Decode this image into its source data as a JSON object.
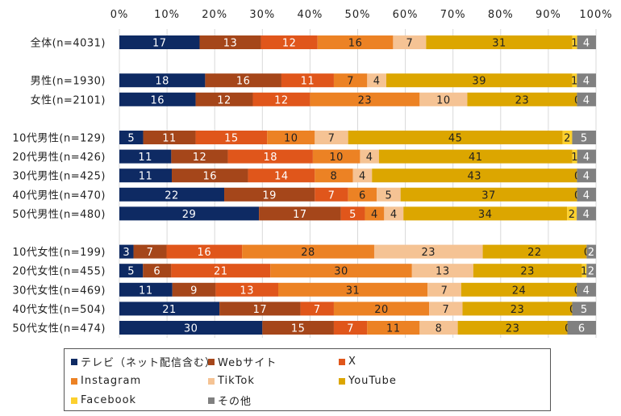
{
  "chart_data": {
    "type": "bar",
    "orientation": "horizontal",
    "stacked": "percent",
    "title": "",
    "xlabel": "",
    "ylabel": "",
    "xlim": [
      0,
      100
    ],
    "x_ticks": [
      "0%",
      "10%",
      "20%",
      "30%",
      "40%",
      "50%",
      "60%",
      "70%",
      "80%",
      "90%",
      "100%"
    ],
    "grid": true,
    "legend_position": "bottom",
    "categories": [
      "全体(n=4031)",
      "",
      "男性(n=1930)",
      "女性(n=2101)",
      "",
      "10代男性(n=129)",
      "20代男性(n=426)",
      "30代男性(n=425)",
      "40代男性(n=470)",
      "50代男性(n=480)",
      "",
      "10代女性(n=199)",
      "20代女性(n=455)",
      "30代女性(n=469)",
      "40代女性(n=504)",
      "50代女性(n=474)"
    ],
    "series": [
      {
        "name": "テレビ（ネット配信含む）",
        "color": "#0e2a63",
        "label_color": "#ffffff",
        "values": [
          17,
          null,
          18,
          16,
          null,
          5,
          11,
          11,
          22,
          29,
          null,
          3,
          5,
          11,
          21,
          30
        ]
      },
      {
        "name": "Webサイト",
        "color": "#a5461a",
        "label_color": "#ffffff",
        "values": [
          13,
          null,
          16,
          12,
          null,
          11,
          12,
          16,
          19,
          17,
          null,
          7,
          6,
          9,
          17,
          15
        ]
      },
      {
        "name": "X",
        "color": "#e0561b",
        "label_color": "#ffffff",
        "values": [
          12,
          null,
          11,
          12,
          null,
          15,
          18,
          14,
          7,
          5,
          null,
          16,
          21,
          13,
          7,
          7
        ]
      },
      {
        "name": "Instagram",
        "color": "#ec8224",
        "label_color": "#222222",
        "values": [
          16,
          null,
          7,
          23,
          null,
          10,
          10,
          8,
          6,
          4,
          null,
          28,
          30,
          31,
          20,
          11
        ]
      },
      {
        "name": "TikTok",
        "color": "#f5c394",
        "label_color": "#222222",
        "values": [
          7,
          null,
          4,
          10,
          null,
          7,
          4,
          4,
          5,
          4,
          null,
          23,
          13,
          7,
          7,
          8
        ]
      },
      {
        "name": "YouTube",
        "color": "#dca600",
        "label_color": "#222222",
        "values": [
          31,
          null,
          39,
          23,
          null,
          45,
          41,
          43,
          37,
          34,
          null,
          22,
          23,
          24,
          23,
          23
        ]
      },
      {
        "name": "Facebook",
        "color": "#fcd02e",
        "label_color": "#222222",
        "values": [
          1,
          null,
          1,
          0,
          null,
          2,
          1,
          0,
          0,
          2,
          null,
          0,
          1,
          0,
          0,
          0
        ]
      },
      {
        "name": "その他",
        "color": "#808080",
        "label_color": "#ffffff",
        "values": [
          4,
          null,
          4,
          4,
          null,
          5,
          4,
          4,
          4,
          4,
          null,
          2,
          2,
          4,
          5,
          6
        ]
      }
    ]
  },
  "legend": {
    "items": [
      {
        "label": "テレビ（ネット配信含む）",
        "color": "#0e2a63"
      },
      {
        "label": "Webサイト",
        "color": "#a5461a"
      },
      {
        "label": "X",
        "color": "#e0561b"
      },
      {
        "label": "Instagram",
        "color": "#ec8224"
      },
      {
        "label": "TikTok",
        "color": "#f5c394"
      },
      {
        "label": "YouTube",
        "color": "#dca600"
      },
      {
        "label": "Facebook",
        "color": "#fcd02e"
      },
      {
        "label": "その他",
        "color": "#808080"
      }
    ]
  }
}
